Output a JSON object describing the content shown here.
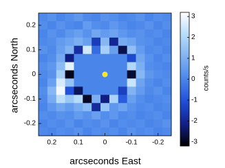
{
  "chart_data": {
    "type": "heatmap",
    "x_label": "arcseconds East",
    "y_label": "arcseconds North",
    "colorbar_label": "counts/s",
    "xlim": [
      0.25,
      -0.25
    ],
    "ylim": [
      -0.25,
      0.25
    ],
    "xticks": [
      0.2,
      0.1,
      0,
      -0.1,
      -0.2
    ],
    "yticks": [
      -0.2,
      -0.1,
      0,
      0.1,
      0.2
    ],
    "clim": [
      -3.2,
      3.2
    ],
    "cticks": [
      -3,
      -2,
      -1,
      0,
      1,
      2,
      3
    ],
    "colormap": [
      "#000000",
      "#12208a",
      "#1f4fd8",
      "#4a86ea",
      "#7fb2f2",
      "#b7dcfa",
      "#ffffff"
    ],
    "marker": {
      "x": 0,
      "y": 0,
      "color": "#ffe81a"
    },
    "z": [
      [
        0.1,
        0.3,
        0,
        0.2,
        0.4,
        0.1,
        0,
        0.3,
        0.2,
        0,
        0.1,
        0.3,
        0,
        0.2,
        0.1
      ],
      [
        0.2,
        0,
        0.3,
        0.1,
        0,
        0.5,
        0.2,
        0.1,
        0.4,
        0.2,
        0,
        0.1,
        0.3,
        0,
        0.2
      ],
      [
        0,
        0.3,
        0.1,
        0.4,
        0.6,
        0.3,
        0.8,
        0.5,
        0.7,
        0.4,
        0.2,
        0.3,
        0.1,
        0.2,
        0
      ],
      [
        0.1,
        0.2,
        0.5,
        0.7,
        1.0,
        0.6,
        -1.5,
        1.2,
        -2.0,
        0.9,
        0.7,
        0.3,
        0.2,
        0,
        0.1
      ],
      [
        0.3,
        0.1,
        0.6,
        1.1,
        -1.8,
        2.5,
        -0.5,
        1.8,
        0.6,
        -2.6,
        1.4,
        0.5,
        0.1,
        0.2,
        0
      ],
      [
        0,
        0.2,
        0.9,
        -2.2,
        0,
        0,
        0,
        0,
        0,
        0,
        -1.2,
        0.8,
        0.3,
        0,
        0.2
      ],
      [
        0.2,
        0.4,
        1.3,
        2.8,
        0,
        0,
        0,
        0,
        0,
        0,
        2.0,
        1.0,
        0.2,
        0.1,
        0
      ],
      [
        0.1,
        0.3,
        1.8,
        -3.0,
        0,
        0,
        0,
        0,
        0,
        0,
        -2.8,
        1.2,
        0.4,
        0.2,
        0.1
      ],
      [
        0,
        0.6,
        2.6,
        1.5,
        0,
        0,
        0,
        0,
        0,
        0,
        2.4,
        0.7,
        0.2,
        0,
        0.2
      ],
      [
        0.2,
        1.2,
        3.0,
        -1.0,
        -2.5,
        0,
        0,
        0,
        0,
        -1.4,
        1.1,
        0.5,
        0.1,
        0.3,
        0
      ],
      [
        0.1,
        0.9,
        2.2,
        1.6,
        2.1,
        -2.9,
        1.0,
        -2.2,
        1.9,
        -0.8,
        0.6,
        0.2,
        0,
        0.1,
        0.2
      ],
      [
        0,
        0.4,
        0.8,
        0.5,
        0.9,
        1.3,
        -1.9,
        1.5,
        0.4,
        0.7,
        0.3,
        0.1,
        0.2,
        0,
        0.1
      ],
      [
        0.2,
        0.1,
        0.3,
        0.2,
        0.5,
        0.3,
        0.6,
        0.2,
        0.4,
        0.1,
        0.2,
        0,
        0.1,
        0.2,
        0
      ],
      [
        0,
        0.2,
        0.1,
        0.3,
        0,
        0.2,
        0.1,
        0.3,
        0,
        0.2,
        0.1,
        0.2,
        0,
        0.1,
        0.3
      ],
      [
        0.1,
        0,
        0.2,
        0.1,
        0.3,
        0,
        0.2,
        0.1,
        0.2,
        0,
        0.3,
        0.1,
        0.2,
        0,
        0.1
      ]
    ]
  }
}
